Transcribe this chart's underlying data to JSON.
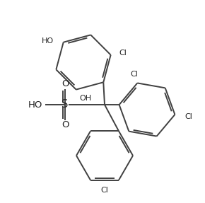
{
  "bg_color": "#ffffff",
  "line_color": "#404040",
  "text_color": "#222222",
  "line_width": 1.4,
  "font_size": 8.0,
  "figsize": [
    2.9,
    2.87
  ],
  "dpi": 100,
  "xlim": [
    0,
    290
  ],
  "ylim": [
    0,
    287
  ]
}
